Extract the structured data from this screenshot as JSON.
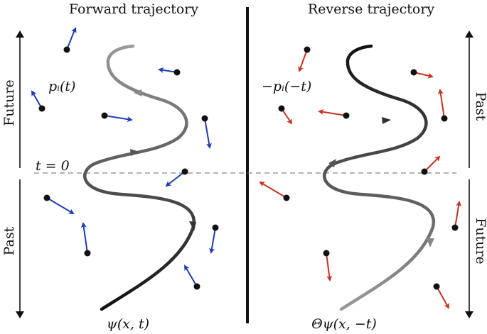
{
  "left_panel": {
    "title": "Forward trajectory",
    "future_label": "Future",
    "past_label": "Past",
    "momentum_label": "pᵢ(t)",
    "time_zero_label": "t = 0",
    "wavefunction_label": "ψ(x, t)",
    "arrow_color": "#1f3bb3"
  },
  "right_panel": {
    "title": "Reverse trajectory",
    "past_label": "Past",
    "future_label": "Future",
    "momentum_label": "−pᵢ(−t)",
    "wavefunction_label": "Θψ(x, −t)",
    "arrow_color": "#c8321e"
  }
}
